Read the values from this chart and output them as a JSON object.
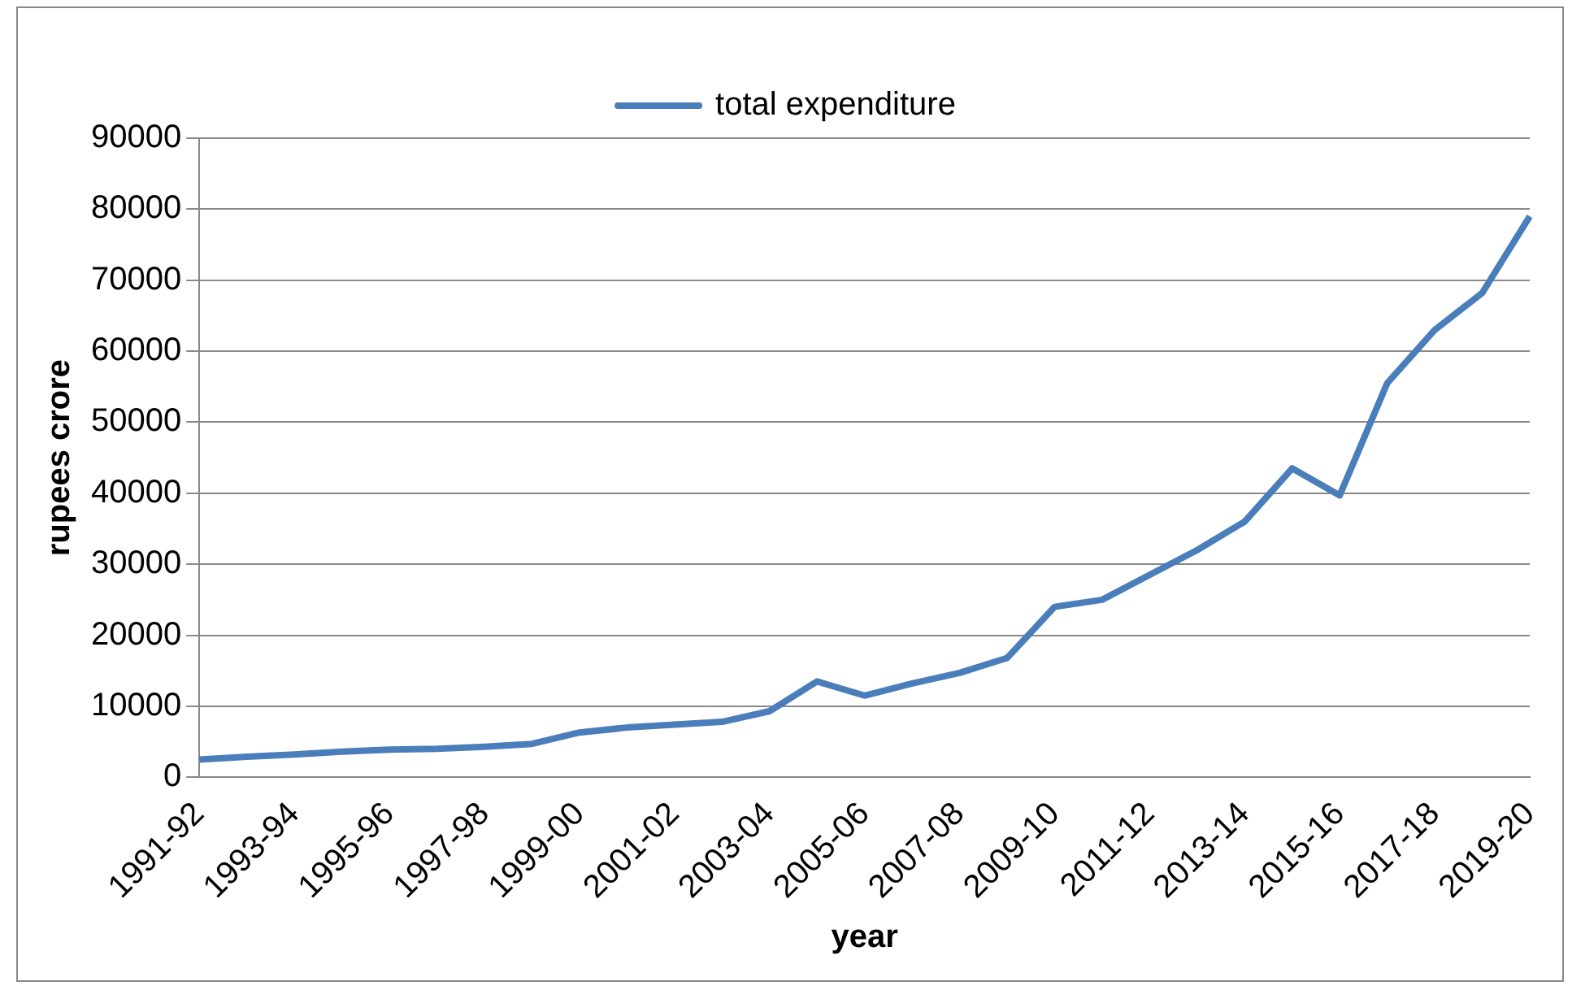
{
  "chart_data": {
    "type": "line",
    "xlabel": "year",
    "ylabel": "rupees crore",
    "categories": [
      "1991-92",
      null,
      "1993-94",
      null,
      "1995-96",
      null,
      "1997-98",
      null,
      "1999-00",
      null,
      "2001-02",
      null,
      "2003-04",
      null,
      "2005-06",
      null,
      "2007-08",
      null,
      "2009-10",
      null,
      "2011-12",
      null,
      "2013-14",
      null,
      "2015-16",
      null,
      "2017-18",
      null,
      "2019-20"
    ],
    "series": [
      {
        "name": "total expenditure",
        "color": "#4a7ebb",
        "values": [
          2500,
          2900,
          3200,
          3600,
          3900,
          4000,
          4300,
          4700,
          6300,
          7000,
          7400,
          7800,
          9300,
          13500,
          11500,
          13200,
          14700,
          16800,
          24000,
          25000,
          28500,
          32000,
          36000,
          43500,
          39700,
          55500,
          63000,
          68200,
          79000
        ]
      }
    ],
    "ylim": [
      0,
      90000
    ],
    "yticks": [
      0,
      10000,
      20000,
      30000,
      40000,
      50000,
      60000,
      70000,
      80000,
      90000
    ],
    "grid": "y",
    "legend": "top",
    "marker": "none",
    "line_style": "solid"
  }
}
